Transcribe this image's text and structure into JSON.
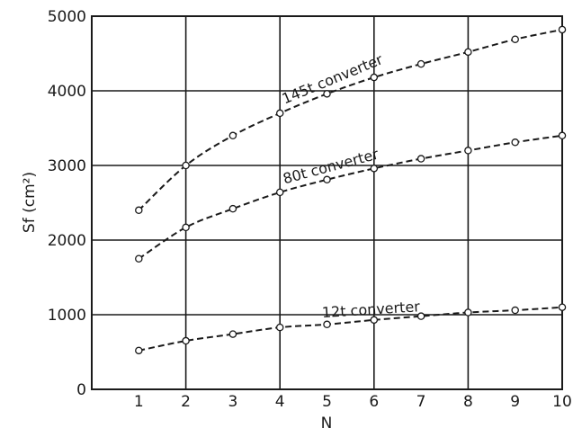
{
  "chart_data": {
    "type": "line",
    "xlabel": "N",
    "ylabel": "Sf (cm²)",
    "x": [
      1,
      2,
      3,
      4,
      5,
      6,
      7,
      8,
      9,
      10
    ],
    "xlim": [
      0,
      10
    ],
    "ylim": [
      0,
      5000
    ],
    "x_ticks": [
      "1",
      "2",
      "3",
      "4",
      "5",
      "6",
      "7",
      "8",
      "9",
      "10"
    ],
    "y_ticks": [
      "0",
      "1000",
      "2000",
      "3000",
      "4000",
      "5000"
    ],
    "grid": true,
    "line_style": "dashed",
    "marker": "open-circle",
    "series": [
      {
        "name": "145t converter",
        "values": [
          2400,
          3000,
          3400,
          3700,
          3960,
          4180,
          4360,
          4520,
          4690,
          4820
        ]
      },
      {
        "name": "80t converter",
        "values": [
          1750,
          2170,
          2420,
          2640,
          2810,
          2960,
          3090,
          3200,
          3310,
          3400
        ]
      },
      {
        "name": "12t converter",
        "values": [
          520,
          650,
          740,
          830,
          870,
          930,
          980,
          1030,
          1060,
          1100
        ]
      }
    ]
  },
  "colors": {
    "ink": "#1a1a1a",
    "background": "#ffffff"
  }
}
